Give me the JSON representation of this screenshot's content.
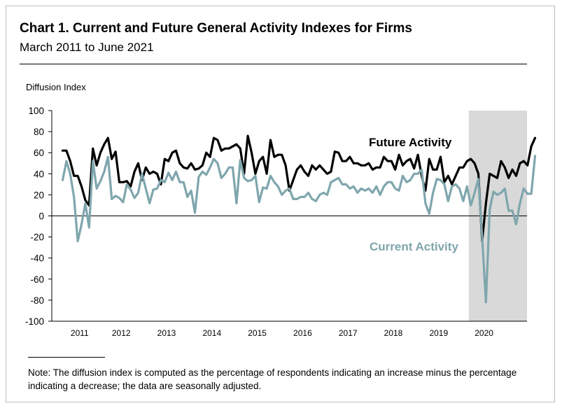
{
  "header": {
    "title": "Chart 1. Current and Future General Activity Indexes for Firms",
    "subtitle": "March 2011 to June 2021"
  },
  "note": "Note: The diffusion index is computed as the percentage of respondents indicating an increase minus the percentage indicating a decrease; the data are seasonally adjusted.",
  "colors": {
    "future": "#000000",
    "current": "#7fa6ad",
    "shade": "#d9d9d9"
  },
  "chart_data": {
    "type": "line",
    "ylabel": "Diffusion Index",
    "ylim": [
      -100,
      100
    ],
    "yticks": [
      100,
      80,
      60,
      40,
      20,
      0,
      -20,
      -40,
      -60,
      -80,
      -100
    ],
    "xlabels": [
      "2011",
      "2012",
      "2013",
      "2014",
      "2015",
      "2016",
      "2017",
      "2018",
      "2019",
      "2020"
    ],
    "shaded_region": {
      "start": "2020-03",
      "end": "2021-06"
    },
    "grid": false,
    "series": [
      {
        "name": "Future Activity",
        "start": "2011-03",
        "values": [
          62,
          62,
          52,
          38,
          38,
          28,
          15,
          10,
          64,
          48,
          60,
          68,
          74,
          54,
          61,
          32,
          32,
          33,
          28,
          42,
          50,
          34,
          46,
          40,
          42,
          40,
          30,
          54,
          52,
          60,
          62,
          50,
          46,
          45,
          50,
          44,
          45,
          48,
          60,
          56,
          74,
          72,
          62,
          64,
          64,
          66,
          68,
          64,
          40,
          76,
          60,
          40,
          52,
          56,
          40,
          72,
          56,
          58,
          58,
          48,
          24,
          34,
          44,
          48,
          42,
          38,
          48,
          44,
          48,
          44,
          40,
          42,
          61,
          60,
          52,
          52,
          56,
          50,
          50,
          48,
          48,
          50,
          44,
          46,
          46,
          56,
          52,
          52,
          44,
          58,
          48,
          52,
          54,
          45,
          58,
          38,
          24,
          54,
          44,
          44,
          56,
          32,
          38,
          30,
          38,
          46,
          46,
          52,
          54,
          50,
          40,
          -24,
          12,
          40,
          38,
          36,
          52,
          46,
          36,
          44,
          38,
          50,
          52,
          48,
          66,
          74
        ],
        "labels": [
          {
            "text": "Future Activity",
            "anchor_index": 113
          }
        ]
      },
      {
        "name": "Current Activity",
        "start": "2011-03",
        "values": [
          34,
          52,
          40,
          18,
          -24,
          -8,
          12,
          -11,
          52,
          26,
          33,
          42,
          56,
          16,
          19,
          17,
          13,
          30,
          25,
          17,
          22,
          40,
          26,
          12,
          25,
          26,
          34,
          32,
          41,
          34,
          42,
          32,
          32,
          18,
          24,
          3,
          37,
          42,
          39,
          46,
          54,
          50,
          36,
          40,
          46,
          46,
          12,
          53,
          36,
          33,
          34,
          38,
          13,
          27,
          26,
          38,
          32,
          28,
          20,
          24,
          26,
          16,
          16,
          18,
          18,
          22,
          16,
          14,
          20,
          22,
          20,
          32,
          34,
          36,
          30,
          30,
          26,
          28,
          22,
          26,
          24,
          26,
          22,
          28,
          20,
          28,
          32,
          32,
          26,
          24,
          38,
          32,
          34,
          40,
          40,
          44,
          12,
          2,
          22,
          35,
          34,
          30,
          14,
          28,
          30,
          26,
          14,
          28,
          10,
          22,
          35,
          -20,
          -82,
          6,
          23,
          20,
          22,
          26,
          5,
          5,
          -8,
          12,
          26,
          21,
          21,
          57
        ],
        "labels": [
          {
            "text": "Current Activity",
            "anchor_index": 111
          }
        ]
      }
    ]
  }
}
